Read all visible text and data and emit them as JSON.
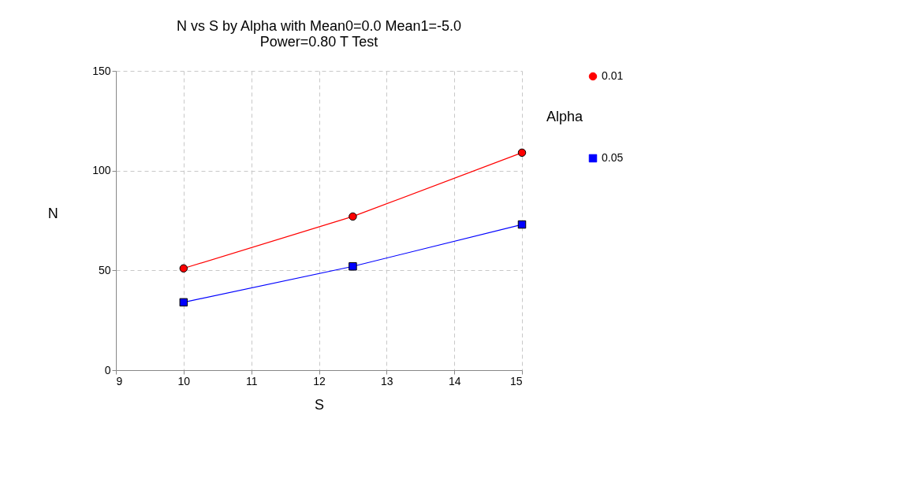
{
  "chart_data": {
    "type": "line",
    "title": "N vs S by Alpha with Mean0=0.0 Mean1=-5.0",
    "subtitle": "Power=0.80 T Test",
    "xlabel": "S",
    "ylabel": "N",
    "legend_title": "Alpha",
    "x": [
      10,
      12.5,
      15
    ],
    "series": [
      {
        "name": "0.01",
        "color": "#ff0000",
        "marker": "circle",
        "values": [
          51,
          77,
          109
        ]
      },
      {
        "name": "0.05",
        "color": "#0000ff",
        "marker": "square",
        "values": [
          34,
          52,
          73
        ]
      }
    ],
    "xlim": [
      9,
      15
    ],
    "xticks": [
      9,
      10,
      11,
      12,
      13,
      14,
      15
    ],
    "ylim": [
      0,
      150
    ],
    "yticks": [
      0,
      50,
      100,
      150
    ],
    "grid": true,
    "legend": "right",
    "line_style": "solid"
  }
}
